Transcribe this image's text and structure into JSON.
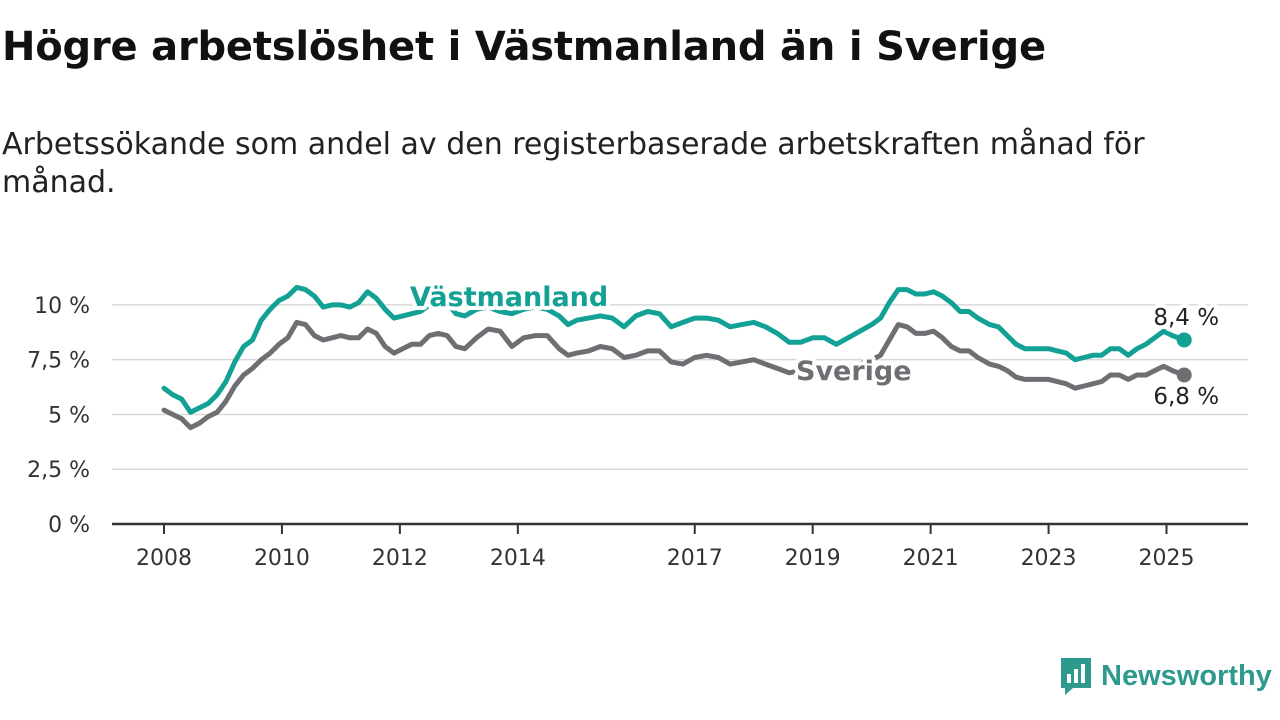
{
  "page": {
    "title": "Högre arbetslöshet i Västmanland än i Sverige",
    "subtitle": "Arbetssökande som andel av den registerbaserade arbetskraften månad för månad."
  },
  "brand": {
    "name": "Newsworthy",
    "icon": "newsworthy-logo-icon",
    "color": "#2e9a8e"
  },
  "chart_data": {
    "type": "line",
    "title": "Högre arbetslöshet i Västmanland än i Sverige",
    "subtitle": "Arbetssökande som andel av den registerbaserade arbetskraften månad för månad.",
    "xlabel": "",
    "ylabel": "",
    "ylim": [
      0,
      11
    ],
    "xlim": [
      2008.0,
      2025.5
    ],
    "y_ticks": [
      0,
      2.5,
      5,
      7.5,
      10
    ],
    "y_tick_labels": [
      "0 %",
      "2,5 %",
      "5 %",
      "7,5 %",
      "10 %"
    ],
    "x_ticks": [
      2008,
      2010,
      2012,
      2014,
      2017,
      2019,
      2021,
      2023,
      2025
    ],
    "x_tick_labels": [
      "2008",
      "2010",
      "2012",
      "2014",
      "2017",
      "2019",
      "2021",
      "2023",
      "2025"
    ],
    "grid": true,
    "legend": "inline labels on lines",
    "series": [
      {
        "name": "Västmanland",
        "color": "#12a194",
        "end_label": "8,4 %",
        "points": [
          [
            2008.0,
            6.2
          ],
          [
            2008.15,
            5.9
          ],
          [
            2008.3,
            5.7
          ],
          [
            2008.45,
            5.1
          ],
          [
            2008.6,
            5.3
          ],
          [
            2008.75,
            5.5
          ],
          [
            2008.9,
            5.9
          ],
          [
            2009.05,
            6.5
          ],
          [
            2009.2,
            7.4
          ],
          [
            2009.35,
            8.1
          ],
          [
            2009.5,
            8.4
          ],
          [
            2009.65,
            9.3
          ],
          [
            2009.8,
            9.8
          ],
          [
            2009.95,
            10.2
          ],
          [
            2010.1,
            10.4
          ],
          [
            2010.25,
            10.8
          ],
          [
            2010.4,
            10.7
          ],
          [
            2010.55,
            10.4
          ],
          [
            2010.7,
            9.9
          ],
          [
            2010.85,
            10.0
          ],
          [
            2011.0,
            10.0
          ],
          [
            2011.15,
            9.9
          ],
          [
            2011.3,
            10.1
          ],
          [
            2011.45,
            10.6
          ],
          [
            2011.6,
            10.3
          ],
          [
            2011.75,
            9.8
          ],
          [
            2011.9,
            9.4
          ],
          [
            2012.05,
            9.5
          ],
          [
            2012.2,
            9.6
          ],
          [
            2012.35,
            9.7
          ],
          [
            2012.5,
            10.0
          ],
          [
            2012.65,
            10.3
          ],
          [
            2012.8,
            10.1
          ],
          [
            2012.95,
            9.6
          ],
          [
            2013.1,
            9.5
          ],
          [
            2013.3,
            9.8
          ],
          [
            2013.5,
            9.9
          ],
          [
            2013.7,
            9.7
          ],
          [
            2013.9,
            9.6
          ],
          [
            2014.1,
            9.8
          ],
          [
            2014.3,
            9.9
          ],
          [
            2014.5,
            9.8
          ],
          [
            2014.7,
            9.5
          ],
          [
            2014.85,
            9.1
          ],
          [
            2015.0,
            9.3
          ],
          [
            2015.2,
            9.4
          ],
          [
            2015.4,
            9.5
          ],
          [
            2015.6,
            9.4
          ],
          [
            2015.8,
            9.0
          ],
          [
            2016.0,
            9.5
          ],
          [
            2016.2,
            9.7
          ],
          [
            2016.4,
            9.6
          ],
          [
            2016.6,
            9.0
          ],
          [
            2016.8,
            9.2
          ],
          [
            2017.0,
            9.4
          ],
          [
            2017.2,
            9.4
          ],
          [
            2017.4,
            9.3
          ],
          [
            2017.6,
            9.0
          ],
          [
            2017.8,
            9.1
          ],
          [
            2018.0,
            9.2
          ],
          [
            2018.2,
            9.0
          ],
          [
            2018.4,
            8.7
          ],
          [
            2018.6,
            8.3
          ],
          [
            2018.8,
            8.3
          ],
          [
            2019.0,
            8.5
          ],
          [
            2019.2,
            8.5
          ],
          [
            2019.4,
            8.2
          ],
          [
            2019.6,
            8.5
          ],
          [
            2019.8,
            8.8
          ],
          [
            2020.0,
            9.1
          ],
          [
            2020.15,
            9.4
          ],
          [
            2020.3,
            10.1
          ],
          [
            2020.45,
            10.7
          ],
          [
            2020.6,
            10.7
          ],
          [
            2020.75,
            10.5
          ],
          [
            2020.9,
            10.5
          ],
          [
            2021.05,
            10.6
          ],
          [
            2021.2,
            10.4
          ],
          [
            2021.35,
            10.1
          ],
          [
            2021.5,
            9.7
          ],
          [
            2021.65,
            9.7
          ],
          [
            2021.8,
            9.4
          ],
          [
            2022.0,
            9.1
          ],
          [
            2022.15,
            9.0
          ],
          [
            2022.3,
            8.6
          ],
          [
            2022.45,
            8.2
          ],
          [
            2022.6,
            8.0
          ],
          [
            2022.8,
            8.0
          ],
          [
            2023.0,
            8.0
          ],
          [
            2023.15,
            7.9
          ],
          [
            2023.3,
            7.8
          ],
          [
            2023.45,
            7.5
          ],
          [
            2023.6,
            7.6
          ],
          [
            2023.75,
            7.7
          ],
          [
            2023.9,
            7.7
          ],
          [
            2024.05,
            8.0
          ],
          [
            2024.2,
            8.0
          ],
          [
            2024.35,
            7.7
          ],
          [
            2024.5,
            8.0
          ],
          [
            2024.65,
            8.2
          ],
          [
            2024.8,
            8.5
          ],
          [
            2024.95,
            8.8
          ],
          [
            2025.1,
            8.6
          ],
          [
            2025.3,
            8.4
          ]
        ]
      },
      {
        "name": "Sverige",
        "color": "#6f6e73",
        "end_label": "6,8 %",
        "points": [
          [
            2008.0,
            5.2
          ],
          [
            2008.15,
            5.0
          ],
          [
            2008.3,
            4.8
          ],
          [
            2008.45,
            4.4
          ],
          [
            2008.6,
            4.6
          ],
          [
            2008.75,
            4.9
          ],
          [
            2008.9,
            5.1
          ],
          [
            2009.05,
            5.6
          ],
          [
            2009.2,
            6.3
          ],
          [
            2009.35,
            6.8
          ],
          [
            2009.5,
            7.1
          ],
          [
            2009.65,
            7.5
          ],
          [
            2009.8,
            7.8
          ],
          [
            2009.95,
            8.2
          ],
          [
            2010.1,
            8.5
          ],
          [
            2010.25,
            9.2
          ],
          [
            2010.4,
            9.1
          ],
          [
            2010.55,
            8.6
          ],
          [
            2010.7,
            8.4
          ],
          [
            2010.85,
            8.5
          ],
          [
            2011.0,
            8.6
          ],
          [
            2011.15,
            8.5
          ],
          [
            2011.3,
            8.5
          ],
          [
            2011.45,
            8.9
          ],
          [
            2011.6,
            8.7
          ],
          [
            2011.75,
            8.1
          ],
          [
            2011.9,
            7.8
          ],
          [
            2012.05,
            8.0
          ],
          [
            2012.2,
            8.2
          ],
          [
            2012.35,
            8.2
          ],
          [
            2012.5,
            8.6
          ],
          [
            2012.65,
            8.7
          ],
          [
            2012.8,
            8.6
          ],
          [
            2012.95,
            8.1
          ],
          [
            2013.1,
            8.0
          ],
          [
            2013.3,
            8.5
          ],
          [
            2013.5,
            8.9
          ],
          [
            2013.7,
            8.8
          ],
          [
            2013.9,
            8.1
          ],
          [
            2014.1,
            8.5
          ],
          [
            2014.3,
            8.6
          ],
          [
            2014.5,
            8.6
          ],
          [
            2014.7,
            8.0
          ],
          [
            2014.85,
            7.7
          ],
          [
            2015.0,
            7.8
          ],
          [
            2015.2,
            7.9
          ],
          [
            2015.4,
            8.1
          ],
          [
            2015.6,
            8.0
          ],
          [
            2015.8,
            7.6
          ],
          [
            2016.0,
            7.7
          ],
          [
            2016.2,
            7.9
          ],
          [
            2016.4,
            7.9
          ],
          [
            2016.6,
            7.4
          ],
          [
            2016.8,
            7.3
          ],
          [
            2017.0,
            7.6
          ],
          [
            2017.2,
            7.7
          ],
          [
            2017.4,
            7.6
          ],
          [
            2017.6,
            7.3
          ],
          [
            2017.8,
            7.4
          ],
          [
            2018.0,
            7.5
          ],
          [
            2018.2,
            7.3
          ],
          [
            2018.4,
            7.1
          ],
          [
            2018.6,
            6.9
          ],
          [
            2018.8,
            7.0
          ],
          [
            2019.0,
            7.1
          ],
          [
            2019.2,
            7.2
          ],
          [
            2019.4,
            7.1
          ],
          [
            2019.6,
            7.2
          ],
          [
            2019.8,
            7.3
          ],
          [
            2020.0,
            7.5
          ],
          [
            2020.15,
            7.7
          ],
          [
            2020.3,
            8.4
          ],
          [
            2020.45,
            9.1
          ],
          [
            2020.6,
            9.0
          ],
          [
            2020.75,
            8.7
          ],
          [
            2020.9,
            8.7
          ],
          [
            2021.05,
            8.8
          ],
          [
            2021.2,
            8.5
          ],
          [
            2021.35,
            8.1
          ],
          [
            2021.5,
            7.9
          ],
          [
            2021.65,
            7.9
          ],
          [
            2021.8,
            7.6
          ],
          [
            2022.0,
            7.3
          ],
          [
            2022.15,
            7.2
          ],
          [
            2022.3,
            7.0
          ],
          [
            2022.45,
            6.7
          ],
          [
            2022.6,
            6.6
          ],
          [
            2022.8,
            6.6
          ],
          [
            2023.0,
            6.6
          ],
          [
            2023.15,
            6.5
          ],
          [
            2023.3,
            6.4
          ],
          [
            2023.45,
            6.2
          ],
          [
            2023.6,
            6.3
          ],
          [
            2023.75,
            6.4
          ],
          [
            2023.9,
            6.5
          ],
          [
            2024.05,
            6.8
          ],
          [
            2024.2,
            6.8
          ],
          [
            2024.35,
            6.6
          ],
          [
            2024.5,
            6.8
          ],
          [
            2024.65,
            6.8
          ],
          [
            2024.8,
            7.0
          ],
          [
            2024.95,
            7.2
          ],
          [
            2025.1,
            7.0
          ],
          [
            2025.3,
            6.8
          ]
        ]
      }
    ]
  }
}
